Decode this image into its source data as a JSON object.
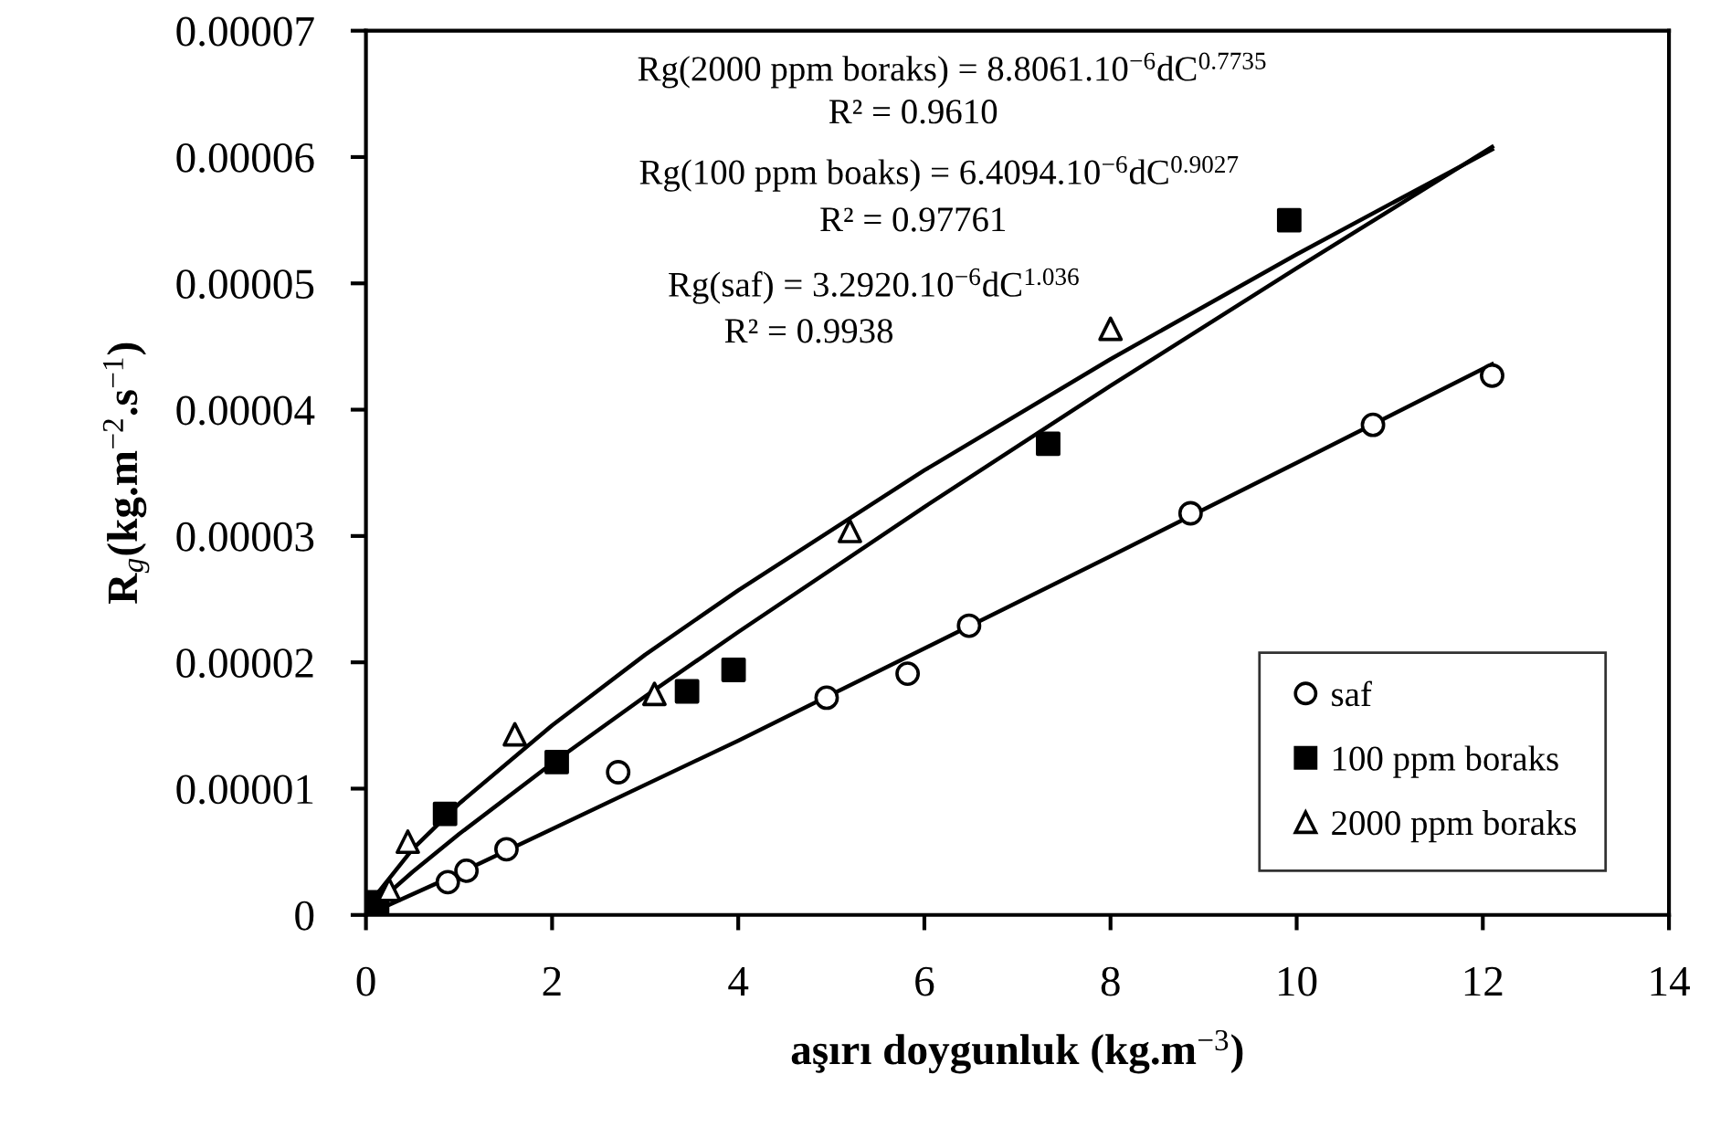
{
  "chart_data": {
    "type": "scatter",
    "xlabel": "aşırı doygunluk (kg.m$^{−3}$)",
    "ylabel": "R$_{g}$(kg.m$^{−2}$.s$^{−1}$)",
    "xlim": [
      0,
      14
    ],
    "xticks": [
      0,
      2,
      4,
      6,
      8,
      10,
      12,
      14
    ],
    "ylim": [
      0,
      7e-05
    ],
    "yticks": [
      0,
      {
        "value": 1e-05,
        "label": "0.00001"
      },
      {
        "value": 2e-05,
        "label": "0.00002"
      },
      {
        "value": 3e-05,
        "label": "0.00003"
      },
      {
        "value": 4e-05,
        "label": "0.00004"
      },
      {
        "value": 5e-05,
        "label": "0.00005"
      },
      {
        "value": 6e-05,
        "label": "0.00006"
      },
      {
        "value": 7e-05,
        "label": "0.00007"
      }
    ],
    "grid": false,
    "legend": "bottom right",
    "annotations": [
      "Rg(2000 ppm boraks) = 8.8061.10$^{−6}$dC$^{0.7735}$",
      "R² = 0.9610",
      "Rg(100 ppm boaks) = 6.4094.10$^{−6}$dC$^{0.9027}$",
      "R² = 0.97761",
      "Rg(saf) = 3.2920.10$^{−6}$dC$^{1.036}$",
      "R² = 0.9938"
    ],
    "series": [
      {
        "name": "saf",
        "marker": "circle",
        "color": "#000000",
        "x": [
          0.88,
          1.08,
          1.51,
          2.71,
          4.95,
          5.82,
          6.48,
          8.86,
          10.82,
          12.1
        ],
        "values": [
          2.6e-06,
          3.5e-06,
          5.2e-06,
          1.13e-05,
          1.72e-05,
          1.91e-05,
          2.29e-05,
          3.18e-05,
          3.88e-05,
          4.27e-05
        ]
      },
      {
        "name": "100 ppm boraks",
        "marker": "square",
        "color": "#000000",
        "x": [
          0.12,
          0.85,
          2.05,
          3.45,
          3.95,
          7.33,
          9.92
        ],
        "values": [
          1e-06,
          8e-06,
          1.21e-05,
          1.77e-05,
          1.94e-05,
          3.73e-05,
          5.5e-05
        ]
      },
      {
        "name": "2000 ppm boraks",
        "marker": "triangle",
        "color": "#000000",
        "x": [
          0.25,
          0.45,
          1.6,
          3.1,
          5.2,
          8.0
        ],
        "values": [
          2e-06,
          5.8e-06,
          1.43e-05,
          1.75e-05,
          3.04e-05,
          4.64e-05
        ]
      },
      {
        "type": "line",
        "marker": "none",
        "color": "#000000",
        "x": [
          0.1,
          0.5,
          1,
          2,
          3,
          4,
          6,
          8,
          10,
          12.1
        ],
        "values": [
          1.5e-06,
          5.2e-06,
          8.8e-06,
          1.5e-05,
          2.06e-05,
          2.57e-05,
          3.52e-05,
          4.4e-05,
          5.23e-05,
          6.06e-05
        ]
      },
      {
        "type": "line",
        "marker": "none",
        "color": "#000000",
        "x": [
          0.1,
          0.5,
          1,
          2,
          3,
          4,
          6,
          8,
          10,
          12.1
        ],
        "values": [
          8e-07,
          3.4e-06,
          6.4e-06,
          1.2e-05,
          1.73e-05,
          2.24e-05,
          3.23e-05,
          4.19e-05,
          5.12e-05,
          6.08e-05
        ]
      },
      {
        "type": "line",
        "marker": "none",
        "color": "#000000",
        "x": [
          0.1,
          1,
          2,
          4,
          6,
          8,
          10,
          12.1
        ],
        "values": [
          3e-07,
          3.3e-06,
          6.8e-06,
          1.38e-05,
          2.11e-05,
          2.84e-05,
          3.58e-05,
          4.36e-05
        ]
      }
    ]
  }
}
